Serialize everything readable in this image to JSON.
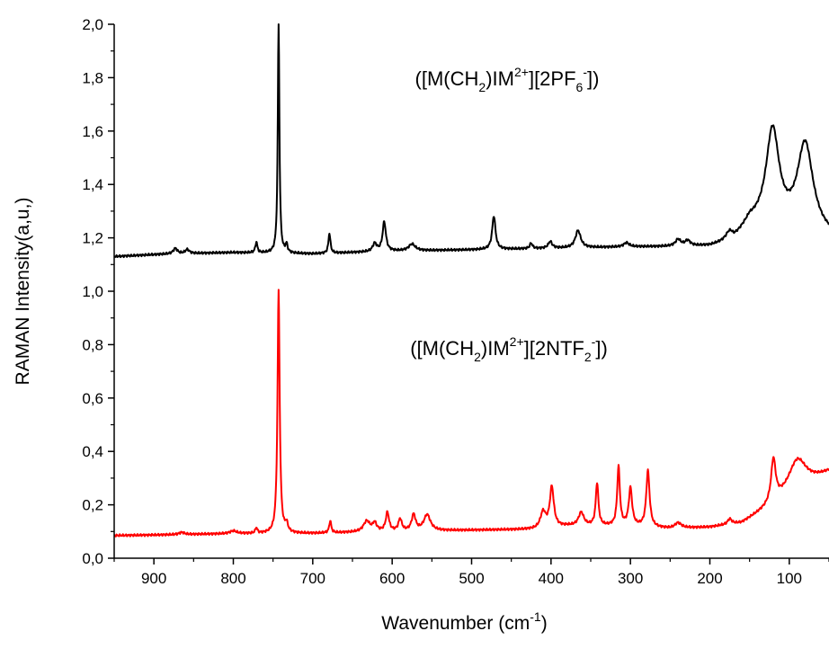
{
  "chart_data": {
    "type": "line",
    "xlabel": "Wavenumber (cm",
    "xlabel_sup": "-1",
    "xlabel_end": ")",
    "ylabel": "RAMAN Intensity(a,u,)",
    "xlim": [
      950,
      50
    ],
    "ylim": [
      0,
      2.0
    ],
    "x_reversed": true,
    "x_ticks": [
      900,
      800,
      700,
      600,
      500,
      400,
      300,
      200,
      100
    ],
    "x_tick_labels": [
      "900",
      "800",
      "700",
      "600",
      "500",
      "400",
      "300",
      "200",
      "100"
    ],
    "y_ticks": [
      0,
      0.2,
      0.4,
      0.6,
      0.8,
      1.0,
      1.2,
      1.4,
      1.6,
      1.8,
      2.0
    ],
    "y_tick_labels": [
      "0,0",
      "0,2",
      "0,4",
      "0,6",
      "0,8",
      "1,0",
      "1,2",
      "1,4",
      "1,6",
      "1,8",
      "2,0"
    ],
    "grid": false,
    "annotations": [
      {
        "parts": [
          [
            "([M(CH",
            "n"
          ],
          [
            "2",
            "sub"
          ],
          [
            ")IM",
            "n"
          ],
          [
            "2+",
            "sup"
          ],
          [
            "][2PF",
            "n"
          ],
          [
            "6",
            "sub"
          ],
          [
            "-",
            "sup"
          ],
          [
            "])",
            "n"
          ]
        ],
        "color": "#000000"
      },
      {
        "parts": [
          [
            "([M(CH",
            "n"
          ],
          [
            "2",
            "sub"
          ],
          [
            ")IM",
            "n"
          ],
          [
            "2+",
            "sup"
          ],
          [
            "][2NTF",
            "n"
          ],
          [
            "2",
            "sub"
          ],
          [
            "-",
            "sup"
          ],
          [
            "])",
            "n"
          ]
        ],
        "color": "#000000"
      }
    ],
    "series": [
      {
        "color": "#000000",
        "baseline": 1.13,
        "drift": [
          [
            950,
            1.13
          ],
          [
            880,
            1.14
          ],
          [
            800,
            1.145
          ],
          [
            700,
            1.14
          ],
          [
            600,
            1.15
          ],
          [
            500,
            1.155
          ],
          [
            400,
            1.16
          ],
          [
            300,
            1.165
          ],
          [
            200,
            1.165
          ],
          [
            170,
            1.18
          ],
          [
            150,
            1.25
          ],
          [
            50,
            1.2
          ]
        ],
        "peaks": [
          [
            873,
            0.02,
            3
          ],
          [
            858,
            0.015,
            3
          ],
          [
            771,
            0.04,
            1.5
          ],
          [
            743,
            0.87,
            1.2
          ],
          [
            733,
            0.03,
            1.5
          ],
          [
            679,
            0.075,
            1.5
          ],
          [
            622,
            0.03,
            3
          ],
          [
            610,
            0.11,
            2.5
          ],
          [
            575,
            0.025,
            5
          ],
          [
            472,
            0.125,
            2.5
          ],
          [
            425,
            0.02,
            2
          ],
          [
            401,
            0.025,
            3
          ],
          [
            366,
            0.065,
            4
          ],
          [
            305,
            0.015,
            4
          ],
          [
            240,
            0.025,
            4
          ],
          [
            228,
            0.02,
            4
          ],
          [
            175,
            0.035,
            6
          ],
          [
            121,
            0.36,
            10
          ],
          [
            80,
            0.33,
            12
          ]
        ]
      },
      {
        "color": "#ff0000",
        "baseline": 0.085,
        "drift": [
          [
            950,
            0.085
          ],
          [
            900,
            0.087
          ],
          [
            800,
            0.092
          ],
          [
            700,
            0.093
          ],
          [
            600,
            0.1
          ],
          [
            500,
            0.105
          ],
          [
            420,
            0.108
          ],
          [
            380,
            0.12
          ],
          [
            300,
            0.12
          ],
          [
            250,
            0.11
          ],
          [
            200,
            0.115
          ],
          [
            160,
            0.13
          ],
          [
            130,
            0.18
          ],
          [
            50,
            0.32
          ]
        ],
        "peaks": [
          [
            865,
            0.008,
            4
          ],
          [
            800,
            0.01,
            5
          ],
          [
            771,
            0.02,
            1.5
          ],
          [
            743,
            0.91,
            1.6
          ],
          [
            733,
            0.03,
            2
          ],
          [
            678,
            0.045,
            1.5
          ],
          [
            632,
            0.04,
            5
          ],
          [
            622,
            0.03,
            3
          ],
          [
            606,
            0.07,
            2.5
          ],
          [
            590,
            0.045,
            2.5
          ],
          [
            573,
            0.06,
            3
          ],
          [
            556,
            0.06,
            5
          ],
          [
            410,
            0.06,
            4
          ],
          [
            399,
            0.15,
            3
          ],
          [
            362,
            0.05,
            4
          ],
          [
            342,
            0.16,
            2
          ],
          [
            315,
            0.22,
            2
          ],
          [
            300,
            0.14,
            2.5
          ],
          [
            278,
            0.21,
            2.5
          ],
          [
            240,
            0.02,
            5
          ],
          [
            175,
            0.02,
            3
          ],
          [
            120,
            0.16,
            3.5
          ],
          [
            90,
            0.12,
            14
          ]
        ]
      }
    ]
  }
}
